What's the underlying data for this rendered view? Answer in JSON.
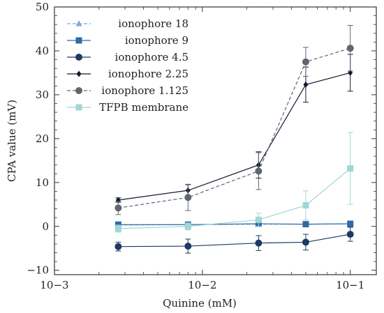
{
  "chart_data": {
    "type": "line",
    "xlabel": "Quinine (mM)",
    "ylabel": "CPA value (mV)",
    "xscale": "log",
    "xlim": [
      0.001,
      0.15
    ],
    "ylim": [
      -11,
      50
    ],
    "x_ticks": [
      0.001,
      0.01,
      0.1
    ],
    "x_tick_labels": [
      "10−3",
      "10−2",
      "10−1"
    ],
    "y_ticks": [
      -10,
      0,
      10,
      20,
      30,
      40,
      50
    ],
    "y_tick_labels": [
      "−10",
      "0",
      "10",
      "20",
      "30",
      "40",
      "50"
    ],
    "grid": false,
    "legend_position": "top-left",
    "x": [
      0.0027,
      0.008,
      0.024,
      0.05,
      0.1
    ],
    "series": [
      {
        "name": "ionophore 18",
        "color": "#7fa8d6",
        "dash": "dashed",
        "marker": "triangle",
        "values": [
          0.3,
          0.4,
          0.5,
          0.5,
          0.6
        ],
        "errors": [
          0.3,
          0.3,
          0.3,
          0.3,
          0.3
        ]
      },
      {
        "name": "ionophore 9",
        "color": "#2f6aa6",
        "dash": "solid",
        "marker": "square",
        "values": [
          0.4,
          0.4,
          0.6,
          0.5,
          0.6
        ],
        "errors": [
          0.3,
          0.3,
          0.3,
          0.3,
          0.3
        ]
      },
      {
        "name": "ionophore 4.5",
        "color": "#1e3a63",
        "dash": "solid",
        "marker": "circle",
        "values": [
          -4.6,
          -4.5,
          -3.8,
          -3.6,
          -1.8
        ],
        "errors": [
          1.0,
          1.6,
          1.7,
          1.8,
          1.6
        ]
      },
      {
        "name": "ionophore 2.25",
        "color": "#111a2e",
        "dash": "solid",
        "marker": "diamond",
        "values": [
          6.0,
          8.2,
          14.0,
          32.3,
          35.0
        ],
        "errors": [
          0.5,
          1.3,
          3.0,
          4.0,
          4.2
        ]
      },
      {
        "name": "ionophore 1.125",
        "color": "#5f6670",
        "dash": "dashed",
        "marker": "circle",
        "values": [
          4.2,
          6.6,
          12.6,
          37.5,
          40.6
        ],
        "errors": [
          1.5,
          3.0,
          4.2,
          3.3,
          5.2
        ]
      },
      {
        "name": "TFPB membrane",
        "color": "#9fd6d6",
        "dash": "solid",
        "marker": "square",
        "values": [
          -0.5,
          0.0,
          1.5,
          4.8,
          13.2
        ],
        "errors": [
          0.8,
          0.8,
          1.5,
          3.3,
          8.2
        ]
      }
    ]
  }
}
